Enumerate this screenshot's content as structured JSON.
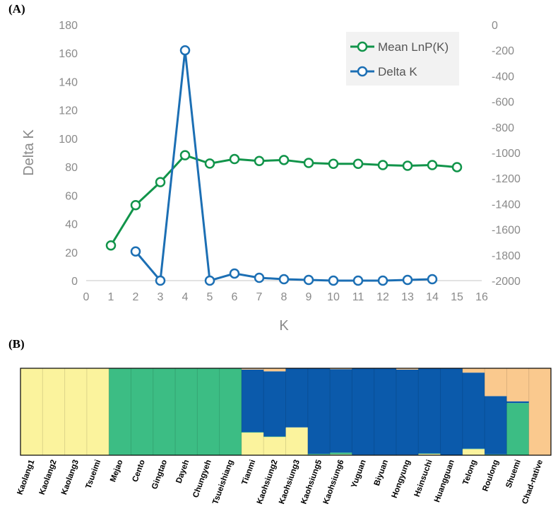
{
  "panels": {
    "a": "(A)",
    "b": "(B)"
  },
  "chart_data": [
    {
      "type": "line",
      "xlabel": "K",
      "ylabel": "Delta K",
      "xlim": [
        0,
        16
      ],
      "xticks": [
        0,
        1,
        2,
        3,
        4,
        5,
        6,
        7,
        8,
        9,
        10,
        11,
        12,
        13,
        14,
        15,
        16
      ],
      "ylim": [
        0,
        180
      ],
      "yticks": [
        0,
        20,
        40,
        60,
        80,
        100,
        120,
        140,
        160,
        180
      ],
      "y2lim": [
        -2000,
        0
      ],
      "y2ticks": [
        0,
        -200,
        -400,
        -600,
        -800,
        -1000,
        -1200,
        -1400,
        -1600,
        -1800,
        -2000
      ],
      "grid": false,
      "legend_position": "top-right",
      "series": [
        {
          "name": "Mean LnP(K)",
          "axis": "right",
          "color": "#11944a",
          "x": [
            1,
            2,
            3,
            4,
            5,
            6,
            7,
            8,
            9,
            10,
            11,
            12,
            13,
            14,
            15
          ],
          "y": [
            -1725,
            -1410,
            -1230,
            -1020,
            -1085,
            -1050,
            -1065,
            -1057,
            -1080,
            -1087,
            -1087,
            -1097,
            -1102,
            -1097,
            -1113
          ]
        },
        {
          "name": "Delta K",
          "axis": "left",
          "color": "#1c6fb4",
          "x": [
            2,
            3,
            4,
            5,
            6,
            7,
            8,
            9,
            10,
            11,
            12,
            13,
            14
          ],
          "y": [
            20.5,
            0,
            162,
            0,
            5,
            2,
            1,
            0.5,
            0,
            0,
            0,
            0.5,
            1
          ]
        }
      ]
    },
    {
      "type": "bar",
      "stacked": true,
      "normalized": true,
      "colors": {
        "yellow": "#fbf39d",
        "green": "#3cbd84",
        "blue": "#0b5aab",
        "orange": "#fac98e"
      },
      "categories": [
        "Kaolang1",
        "Kaolang2",
        "Kaolang3",
        "Tsueimi",
        "Mejao",
        "Cento",
        "Gingtao",
        "Dayeh",
        "Chungyeh",
        "Tsueishiang",
        "Tianmi",
        "Kaohsiung2",
        "Kaohsiung3",
        "Kaohsiung5",
        "Kaohsiung6",
        "Yuguan",
        "Biyuan",
        "Hongyung",
        "Hsinsuchi",
        "Huangguan",
        "Telong",
        "Roulong",
        "Shuemi",
        "Chad-native"
      ],
      "series": [
        {
          "name": "yellow",
          "values": [
            1,
            1,
            1,
            1,
            0.005,
            0,
            0,
            0,
            0,
            0,
            0.26,
            0.21,
            0.32,
            0.005,
            0.01,
            0,
            0,
            0.005,
            0.015,
            0,
            0.07,
            0,
            0,
            0
          ]
        },
        {
          "name": "green",
          "values": [
            0,
            0,
            0,
            0,
            0.995,
            1,
            1,
            1,
            1,
            1,
            0.005,
            0.005,
            0,
            0.01,
            0.02,
            0.005,
            0.005,
            0,
            0.005,
            0,
            0.005,
            0.01,
            0.6,
            0
          ]
        },
        {
          "name": "blue",
          "values": [
            0,
            0,
            0,
            0,
            0,
            0,
            0,
            0,
            0,
            0,
            0.72,
            0.75,
            0.68,
            0.985,
            0.96,
            0.995,
            0.995,
            0.98,
            0.98,
            1,
            0.875,
            0.67,
            0.02,
            0
          ]
        },
        {
          "name": "orange",
          "values": [
            0,
            0,
            0,
            0,
            0,
            0,
            0,
            0,
            0,
            0,
            0.015,
            0.035,
            0,
            0,
            0.01,
            0,
            0,
            0.015,
            0,
            0,
            0.05,
            0.32,
            0.38,
            1
          ]
        }
      ]
    }
  ]
}
